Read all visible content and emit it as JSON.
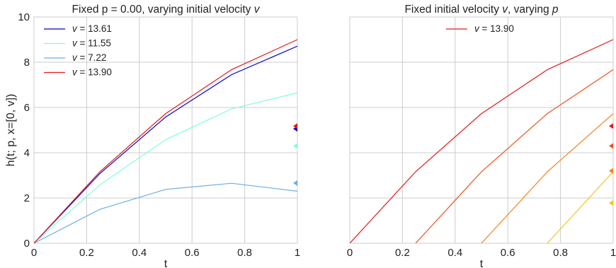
{
  "chart_data": [
    {
      "type": "line",
      "title": "Fixed p = 0.00, varying initial velocity v",
      "title_text": "Fixed p = 0.00, varying initial velocity ",
      "title_var": "v",
      "xlabel": "t",
      "ylabel": "h(t; p, x=[0, v])",
      "xlim": [
        0,
        1
      ],
      "ylim": [
        0,
        10
      ],
      "xticks": [
        "0",
        "0.2",
        "0.4",
        "0.6",
        "0.8",
        "1"
      ],
      "yticks": [
        "0",
        "2",
        "4",
        "6",
        "8",
        "10"
      ],
      "grid": true,
      "legend_position": "top-left",
      "series": [
        {
          "name": "v = 13.61",
          "var": "v",
          "value_label": " = 13.61",
          "color": "#0000cc",
          "x": [
            0,
            0.25,
            0.5,
            0.75,
            1.0
          ],
          "y": [
            0,
            3.08,
            5.58,
            7.45,
            8.71
          ],
          "marker_y": 5.06
        },
        {
          "name": "v = 11.55",
          "var": "v",
          "value_label": " = 11.55",
          "color": "#7fffd4",
          "x": [
            0,
            0.25,
            0.5,
            0.75,
            1.0
          ],
          "y": [
            0,
            2.58,
            4.58,
            5.94,
            6.65
          ],
          "marker_y": 4.3
        },
        {
          "name": "v = 7.22",
          "var": "v",
          "value_label": " = 7.22",
          "color": "#6aaee6",
          "x": [
            0,
            0.25,
            0.5,
            0.75,
            1.0
          ],
          "y": [
            0,
            1.5,
            2.38,
            2.65,
            2.3
          ],
          "marker_y": 2.66
        },
        {
          "name": "v = 13.90",
          "var": "v",
          "value_label": " = 13.90",
          "color": "#e31a1c",
          "x": [
            0,
            0.25,
            0.5,
            0.75,
            1.0
          ],
          "y": [
            0,
            3.16,
            5.73,
            7.67,
            9.0
          ],
          "marker_y": 5.18
        }
      ]
    },
    {
      "type": "line",
      "title": "Fixed initial velocity v, varying p",
      "title_text": "Fixed initial velocity ",
      "title_var": "v",
      "title_suffix": ", varying ",
      "title_var2": "p",
      "xlabel": "t",
      "ylabel": "",
      "xlim": [
        0,
        1
      ],
      "ylim": [
        0,
        10
      ],
      "xticks": [
        "0",
        "0.2",
        "0.4",
        "0.6",
        "0.8",
        "1"
      ],
      "yticks": [],
      "grid": true,
      "legend_position": "top-center",
      "series": [
        {
          "name": "v = 13.90",
          "var": "v",
          "value_label": " = 13.90",
          "color": "#e31a1c",
          "in_legend": true,
          "x": [
            0,
            0.25,
            0.5,
            0.75,
            1.0
          ],
          "y": [
            0,
            3.16,
            5.73,
            7.67,
            9.0
          ],
          "marker_y": 5.18
        },
        {
          "name": "",
          "color": "#f0501e",
          "in_legend": false,
          "x": [
            0.25,
            0.5,
            0.75,
            1.0
          ],
          "y": [
            0,
            3.16,
            5.73,
            7.67
          ],
          "marker_y": 4.3
        },
        {
          "name": "",
          "color": "#f5821e",
          "in_legend": false,
          "x": [
            0.5,
            0.75,
            1.0
          ],
          "y": [
            0,
            3.16,
            5.73
          ],
          "marker_y": 3.2
        },
        {
          "name": "",
          "color": "#f5c31e",
          "in_legend": false,
          "x": [
            0.75,
            1.0
          ],
          "y": [
            0,
            3.16
          ],
          "marker_y": 1.78
        }
      ]
    }
  ]
}
